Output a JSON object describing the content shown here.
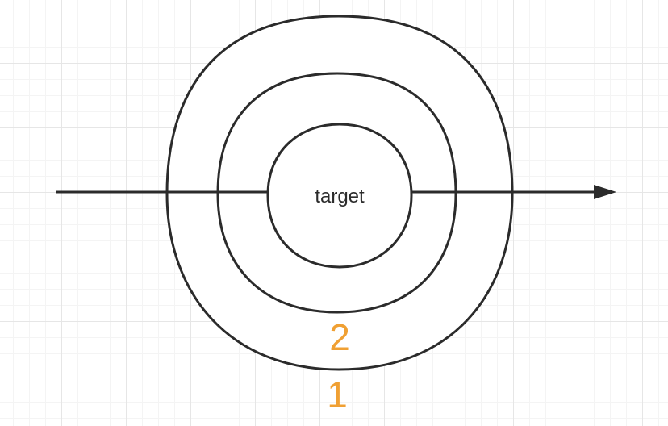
{
  "diagram": {
    "center_label": "target",
    "ring_labels": [
      "2",
      "1"
    ],
    "colors": {
      "stroke": "#2b2b2b",
      "ring_label": "#f0a033",
      "grid": "#e6e6e6"
    }
  }
}
